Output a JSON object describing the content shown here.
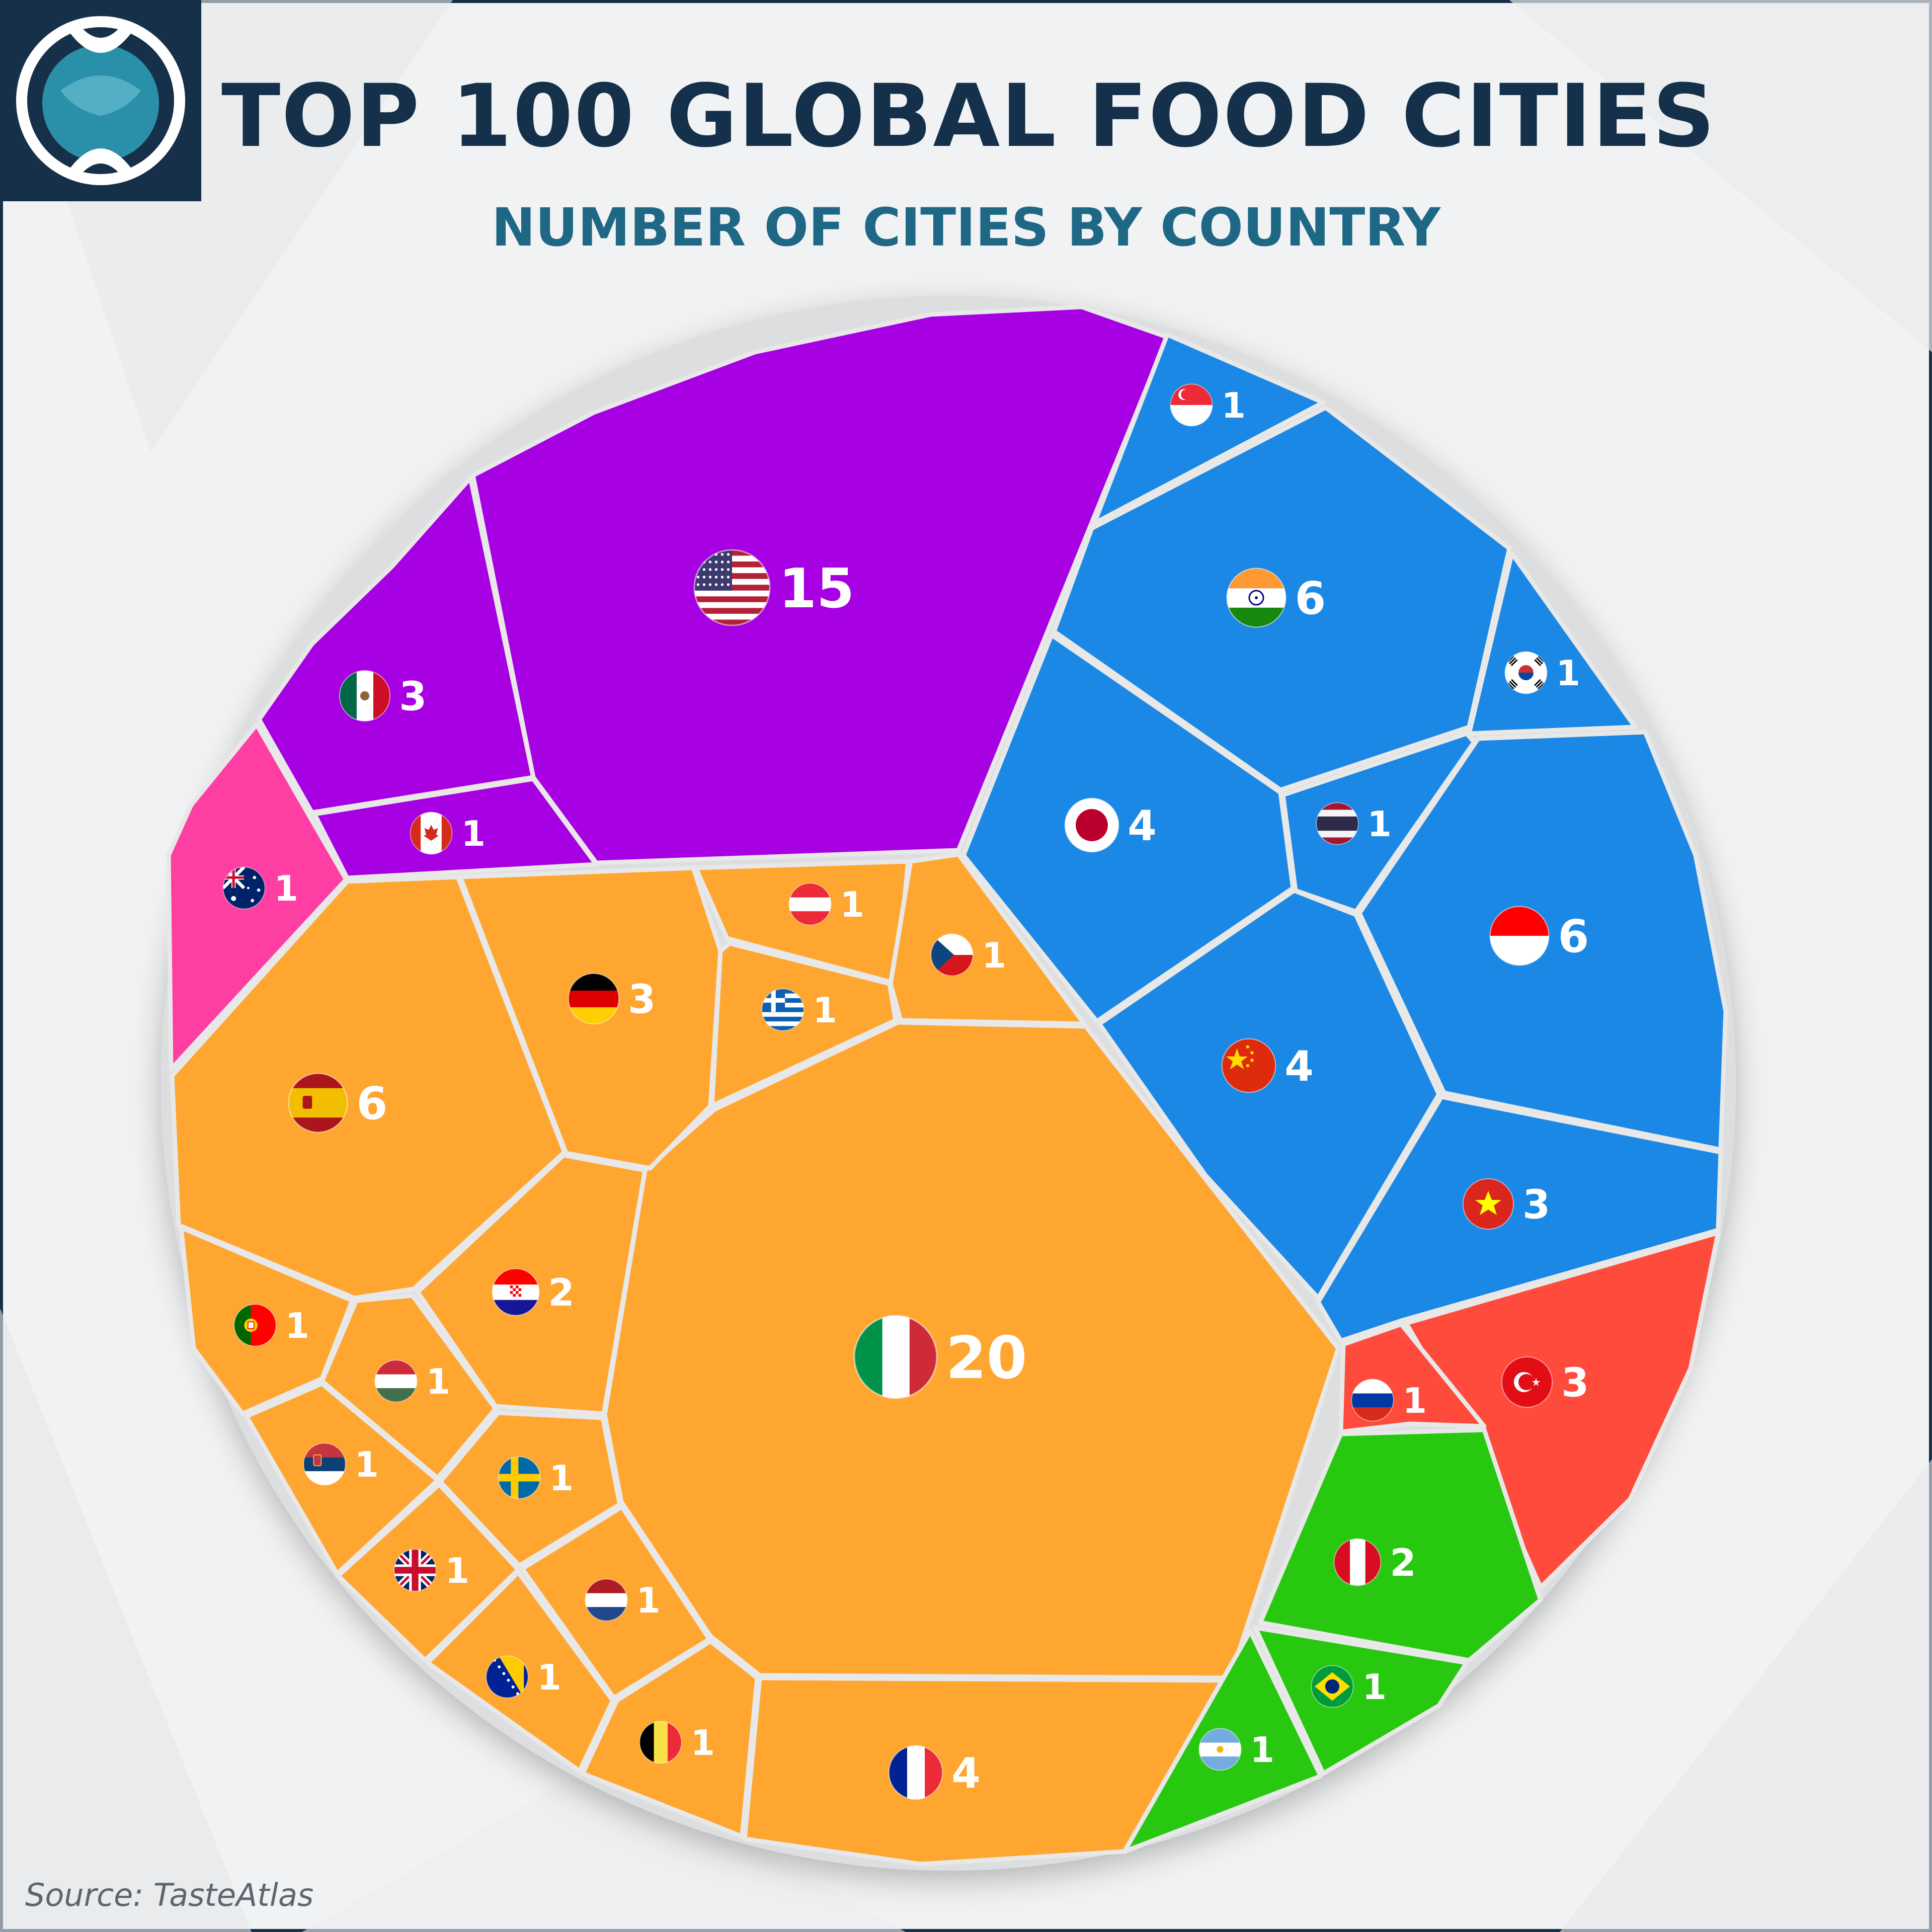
{
  "title": "TOP 100 GLOBAL FOOD CITIES",
  "subtitle": "NUMBER OF CITIES BY COUNTRY",
  "source": "Source: TasteAtlas",
  "colors": {
    "North America": "#a700e2",
    "Oceania": "#ff3ea4",
    "Europe": "#ffa630",
    "Asia": "#1b88e5",
    "Middle East": "#ff4b3c",
    "South America": "#28c810",
    "Border": "#e8e8e8",
    "Title": "#14304a",
    "Subtitle": "#1e6886"
  },
  "chart_data": {
    "type": "voronoi treemap",
    "title": "TOP 100 GLOBAL FOOD CITIES",
    "subtitle": "NUMBER OF CITIES BY COUNTRY",
    "total": 100,
    "cells": [
      {
        "country": "USA",
        "flag": "usa-flag",
        "value": 15,
        "group": "North America"
      },
      {
        "country": "Mexico",
        "flag": "mexico-flag",
        "value": 3,
        "group": "North America"
      },
      {
        "country": "Canada",
        "flag": "canada-flag",
        "value": 1,
        "group": "North America"
      },
      {
        "country": "Australia",
        "flag": "australia-flag",
        "value": 1,
        "group": "Oceania"
      },
      {
        "country": "Italy",
        "flag": "italy-flag",
        "value": 20,
        "group": "Europe"
      },
      {
        "country": "Spain",
        "flag": "spain-flag",
        "value": 6,
        "group": "Europe"
      },
      {
        "country": "France",
        "flag": "france-flag",
        "value": 4,
        "group": "Europe"
      },
      {
        "country": "Germany",
        "flag": "germany-flag",
        "value": 3,
        "group": "Europe"
      },
      {
        "country": "Croatia",
        "flag": "croatia-flag",
        "value": 2,
        "group": "Europe"
      },
      {
        "country": "Austria",
        "flag": "austria-flag",
        "value": 1,
        "group": "Europe"
      },
      {
        "country": "Greece",
        "flag": "greece-flag",
        "value": 1,
        "group": "Europe"
      },
      {
        "country": "Czechia",
        "flag": "czechia-flag",
        "value": 1,
        "group": "Europe"
      },
      {
        "country": "Portugal",
        "flag": "portugal-flag",
        "value": 1,
        "group": "Europe"
      },
      {
        "country": "Hungary",
        "flag": "hungary-flag",
        "value": 1,
        "group": "Europe"
      },
      {
        "country": "Serbia",
        "flag": "serbia-flag",
        "value": 1,
        "group": "Europe"
      },
      {
        "country": "Sweden",
        "flag": "sweden-flag",
        "value": 1,
        "group": "Europe"
      },
      {
        "country": "United Kingdom",
        "flag": "uk-flag",
        "value": 1,
        "group": "Europe"
      },
      {
        "country": "Netherlands",
        "flag": "netherlands-flag",
        "value": 1,
        "group": "Europe"
      },
      {
        "country": "Bosnia and Herzegovina",
        "flag": "bosnia-flag",
        "value": 1,
        "group": "Europe"
      },
      {
        "country": "Belgium",
        "flag": "belgium-flag",
        "value": 1,
        "group": "Europe"
      },
      {
        "country": "India",
        "flag": "india-flag",
        "value": 6,
        "group": "Asia"
      },
      {
        "country": "Indonesia",
        "flag": "indonesia-flag",
        "value": 6,
        "group": "Asia"
      },
      {
        "country": "Japan",
        "flag": "japan-flag",
        "value": 4,
        "group": "Asia"
      },
      {
        "country": "China",
        "flag": "china-flag",
        "value": 4,
        "group": "Asia"
      },
      {
        "country": "Vietnam",
        "flag": "vietnam-flag",
        "value": 3,
        "group": "Asia"
      },
      {
        "country": "Singapore",
        "flag": "singapore-flag",
        "value": 1,
        "group": "Asia"
      },
      {
        "country": "South Korea",
        "flag": "south-korea-flag",
        "value": 1,
        "group": "Asia"
      },
      {
        "country": "Thailand",
        "flag": "thailand-flag",
        "value": 1,
        "group": "Asia"
      },
      {
        "country": "Turkey",
        "flag": "turkey-flag",
        "value": 3,
        "group": "Middle East"
      },
      {
        "country": "Russia",
        "flag": "russia-flag",
        "value": 1,
        "group": "Middle East"
      },
      {
        "country": "Peru",
        "flag": "peru-flag",
        "value": 2,
        "group": "South America"
      },
      {
        "country": "Brazil",
        "flag": "brazil-flag",
        "value": 1,
        "group": "South America"
      },
      {
        "country": "Argentina",
        "flag": "argentina-flag",
        "value": 1,
        "group": "South America"
      }
    ]
  }
}
